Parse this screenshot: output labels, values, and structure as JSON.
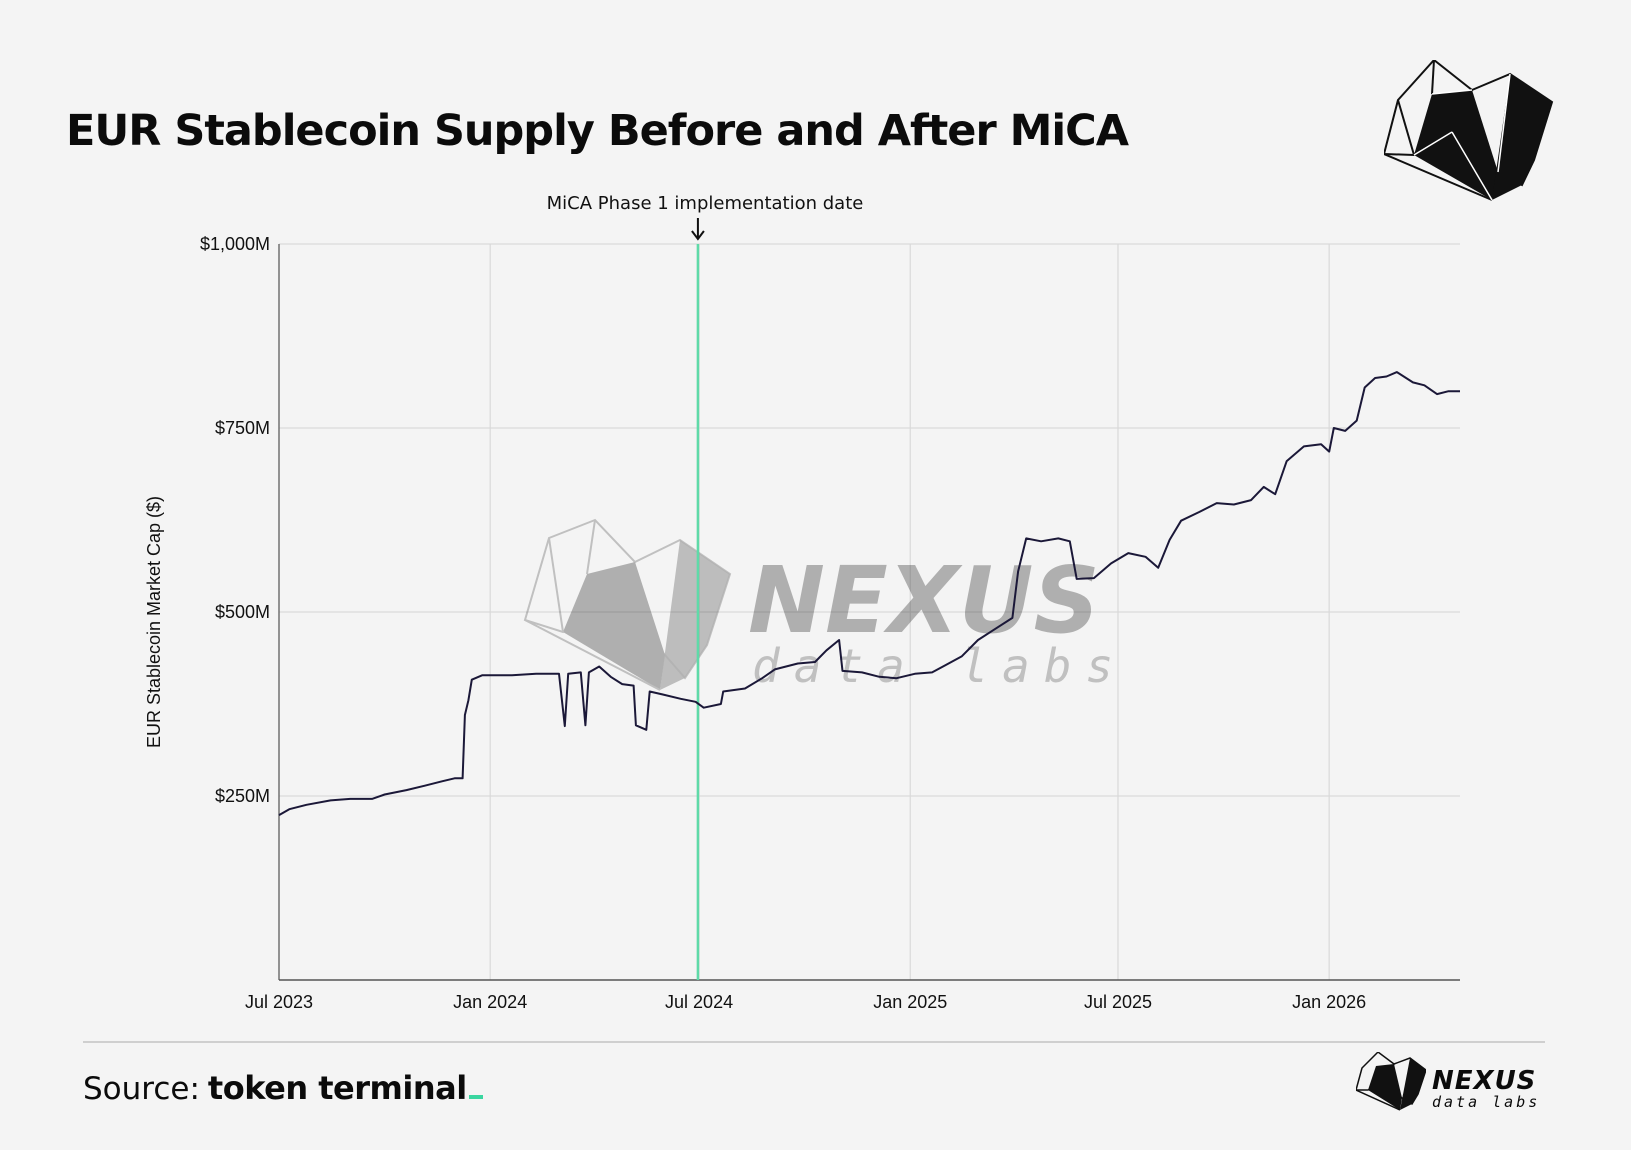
{
  "title": "EUR Stablecoin Supply Before and After MiCA",
  "source": {
    "label": "Source:",
    "brand": "token terminal"
  },
  "watermark": {
    "name": "NEXUS",
    "sub": "data labs"
  },
  "logo": {
    "name": "NEXUS",
    "sub": "data labs"
  },
  "colors": {
    "line": "#1b1838",
    "marker": "#5fdaa8",
    "grid": "#d9d9d9",
    "background": "#f4f4f4",
    "accent": "#3ad6a0"
  },
  "chart_data": {
    "type": "line",
    "title": "EUR Stablecoin Supply Before and After MiCA",
    "xlabel": "",
    "ylabel": "EUR Stablecoin Market Cap ($)",
    "xlim": [
      "2023-07-01",
      "2026-04-25"
    ],
    "ylim": [
      0,
      1000
    ],
    "y_ticks": [
      {
        "value": 250,
        "label": "$250M"
      },
      {
        "value": 500,
        "label": "$500M"
      },
      {
        "value": 750,
        "label": "$750M"
      },
      {
        "value": 1000,
        "label": "$1,000M"
      }
    ],
    "x_ticks": [
      {
        "date": "2023-07-01",
        "label": "Jul 2023"
      },
      {
        "date": "2024-01-01",
        "label": "Jan 2024"
      },
      {
        "date": "2024-07-01",
        "label": "Jul 2024"
      },
      {
        "date": "2025-01-01",
        "label": "Jan 2025"
      },
      {
        "date": "2025-07-01",
        "label": "Jul 2025"
      },
      {
        "date": "2026-01-01",
        "label": "Jan 2026"
      }
    ],
    "grid": true,
    "annotation": {
      "date": "2024-06-30",
      "label": "MiCA Phase 1 implementation date"
    },
    "series": [
      {
        "points": [
          [
            "2023-07-01",
            224
          ],
          [
            "2023-07-10",
            232
          ],
          [
            "2023-07-25",
            238
          ],
          [
            "2023-08-15",
            244
          ],
          [
            "2023-09-01",
            246
          ],
          [
            "2023-09-20",
            246
          ],
          [
            "2023-10-01",
            252
          ],
          [
            "2023-10-20",
            258
          ],
          [
            "2023-11-05",
            264
          ],
          [
            "2023-11-20",
            270
          ],
          [
            "2023-12-01",
            274
          ],
          [
            "2023-12-08",
            274
          ],
          [
            "2023-12-10",
            360
          ],
          [
            "2023-12-13",
            380
          ],
          [
            "2023-12-16",
            408
          ],
          [
            "2023-12-25",
            414
          ],
          [
            "2024-01-20",
            414
          ],
          [
            "2024-02-10",
            416
          ],
          [
            "2024-03-01",
            416
          ],
          [
            "2024-03-06",
            345
          ],
          [
            "2024-03-09",
            416
          ],
          [
            "2024-03-20",
            418
          ],
          [
            "2024-03-24",
            346
          ],
          [
            "2024-03-27",
            418
          ],
          [
            "2024-04-05",
            426
          ],
          [
            "2024-04-15",
            412
          ],
          [
            "2024-04-25",
            402
          ],
          [
            "2024-05-05",
            400
          ],
          [
            "2024-05-07",
            346
          ],
          [
            "2024-05-16",
            340
          ],
          [
            "2024-05-19",
            392
          ],
          [
            "2024-05-30",
            388
          ],
          [
            "2024-06-15",
            382
          ],
          [
            "2024-06-28",
            378
          ],
          [
            "2024-07-05",
            370
          ],
          [
            "2024-07-20",
            375
          ],
          [
            "2024-07-22",
            392
          ],
          [
            "2024-08-10",
            396
          ],
          [
            "2024-08-25",
            410
          ],
          [
            "2024-09-05",
            422
          ],
          [
            "2024-09-25",
            430
          ],
          [
            "2024-10-10",
            432
          ],
          [
            "2024-10-20",
            448
          ],
          [
            "2024-10-31",
            462
          ],
          [
            "2024-11-03",
            420
          ],
          [
            "2024-11-20",
            418
          ],
          [
            "2024-12-05",
            412
          ],
          [
            "2024-12-20",
            410
          ],
          [
            "2025-01-05",
            416
          ],
          [
            "2025-01-20",
            418
          ],
          [
            "2025-02-01",
            428
          ],
          [
            "2025-02-15",
            440
          ],
          [
            "2025-03-01",
            462
          ],
          [
            "2025-03-15",
            476
          ],
          [
            "2025-03-31",
            492
          ],
          [
            "2025-04-05",
            555
          ],
          [
            "2025-04-12",
            600
          ],
          [
            "2025-04-25",
            596
          ],
          [
            "2025-05-10",
            600
          ],
          [
            "2025-05-20",
            596
          ],
          [
            "2025-05-26",
            545
          ],
          [
            "2025-06-10",
            546
          ],
          [
            "2025-06-25",
            566
          ],
          [
            "2025-07-10",
            580
          ],
          [
            "2025-07-25",
            575
          ],
          [
            "2025-08-05",
            560
          ],
          [
            "2025-08-15",
            598
          ],
          [
            "2025-08-25",
            624
          ],
          [
            "2025-09-10",
            636
          ],
          [
            "2025-09-25",
            648
          ],
          [
            "2025-10-10",
            646
          ],
          [
            "2025-10-25",
            652
          ],
          [
            "2025-11-05",
            670
          ],
          [
            "2025-11-15",
            660
          ],
          [
            "2025-11-25",
            705
          ],
          [
            "2025-12-10",
            725
          ],
          [
            "2025-12-25",
            728
          ],
          [
            "2026-01-01",
            718
          ],
          [
            "2026-01-05",
            750
          ],
          [
            "2026-01-15",
            746
          ],
          [
            "2026-01-25",
            760
          ],
          [
            "2026-02-01",
            805
          ],
          [
            "2026-02-10",
            818
          ],
          [
            "2026-02-20",
            820
          ],
          [
            "2026-03-01",
            826
          ],
          [
            "2026-03-15",
            812
          ],
          [
            "2026-03-25",
            808
          ],
          [
            "2026-04-05",
            796
          ],
          [
            "2026-04-15",
            800
          ],
          [
            "2026-04-25",
            800
          ]
        ]
      }
    ]
  }
}
